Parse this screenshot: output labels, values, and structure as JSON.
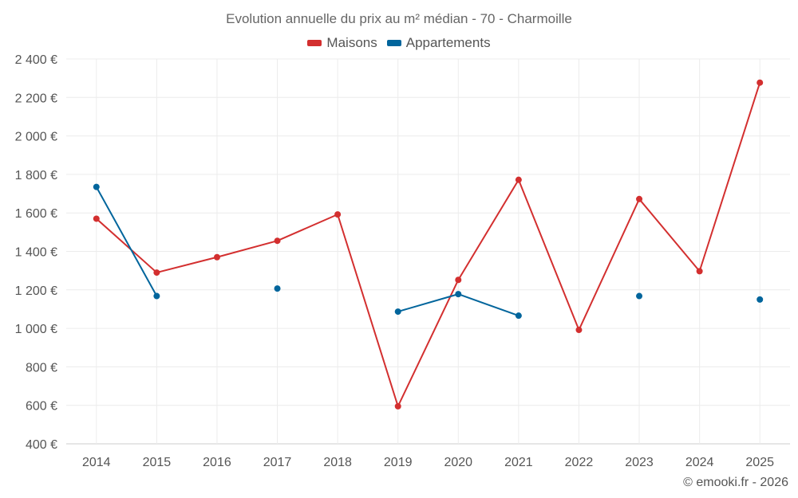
{
  "chart_data": {
    "type": "line",
    "title": "Evolution annuelle du prix au m² médian - 70 - Charmoille",
    "categories": [
      "2014",
      "2015",
      "2016",
      "2017",
      "2018",
      "2019",
      "2020",
      "2021",
      "2022",
      "2023",
      "2024",
      "2025"
    ],
    "y_ticks": [
      400,
      600,
      800,
      1000,
      1200,
      1400,
      1600,
      1800,
      2000,
      2200,
      2400
    ],
    "y_tick_labels": [
      "400 €",
      "600 €",
      "800 €",
      "1 000 €",
      "1 200 €",
      "1 400 €",
      "1 600 €",
      "1 800 €",
      "2 000 €",
      "2 200 €",
      "2 400 €"
    ],
    "ylim": [
      400,
      2400
    ],
    "grid": true,
    "legend_position": "top-center",
    "series": [
      {
        "name": "Maisons",
        "color": "#d32f2f",
        "values": [
          1570,
          1290,
          1370,
          1455,
          1592,
          595,
          1252,
          1772,
          992,
          1672,
          1297,
          2277
        ]
      },
      {
        "name": "Appartements",
        "color": "#01659c",
        "values": [
          1735,
          1168,
          null,
          1207,
          null,
          1087,
          1178,
          1066,
          null,
          1168,
          null,
          1150
        ]
      }
    ]
  },
  "footer": {
    "copyright": "© emooki.fr - 2026"
  }
}
